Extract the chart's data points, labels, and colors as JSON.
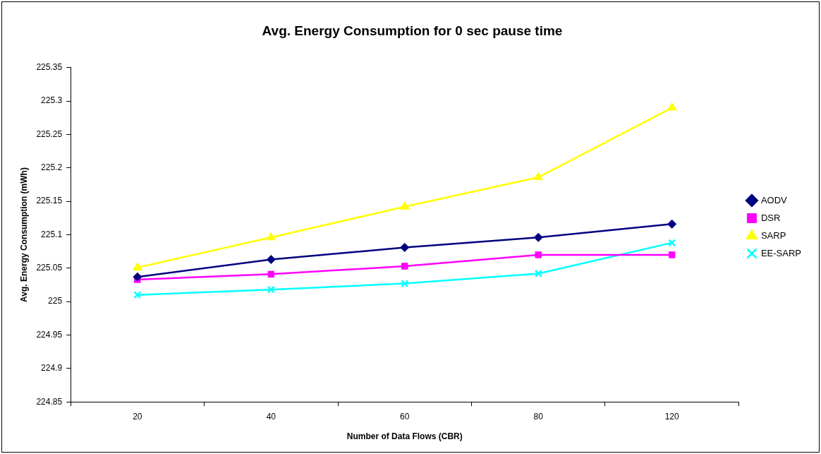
{
  "chart_data": {
    "type": "line",
    "title": "Avg. Energy Consumption for 0 sec pause time",
    "xlabel": "Number of Data Flows (CBR)",
    "ylabel": "Avg. Energy Consumption (mWh)",
    "categories": [
      "20",
      "40",
      "60",
      "80",
      "120"
    ],
    "series": [
      {
        "name": "AODV",
        "color": "#000080",
        "marker": "diamond",
        "values": [
          225.037,
          225.063,
          225.081,
          225.096,
          225.116
        ]
      },
      {
        "name": "DSR",
        "color": "#ff00ff",
        "marker": "square",
        "values": [
          225.033,
          225.041,
          225.053,
          225.07,
          225.07
        ]
      },
      {
        "name": "SARP",
        "color": "#ffff00",
        "marker": "triangle",
        "values": [
          225.051,
          225.096,
          225.142,
          225.186,
          225.29
        ]
      },
      {
        "name": "EE-SARP",
        "color": "#00ffff",
        "marker": "cross",
        "values": [
          225.01,
          225.018,
          225.027,
          225.042,
          225.088
        ]
      }
    ],
    "ylim": [
      224.85,
      225.35
    ],
    "yticks": [
      224.85,
      224.9,
      224.95,
      225,
      225.05,
      225.1,
      225.15,
      225.2,
      225.25,
      225.3,
      225.35
    ],
    "grid": false,
    "legend": "right",
    "line_style": "solid"
  }
}
